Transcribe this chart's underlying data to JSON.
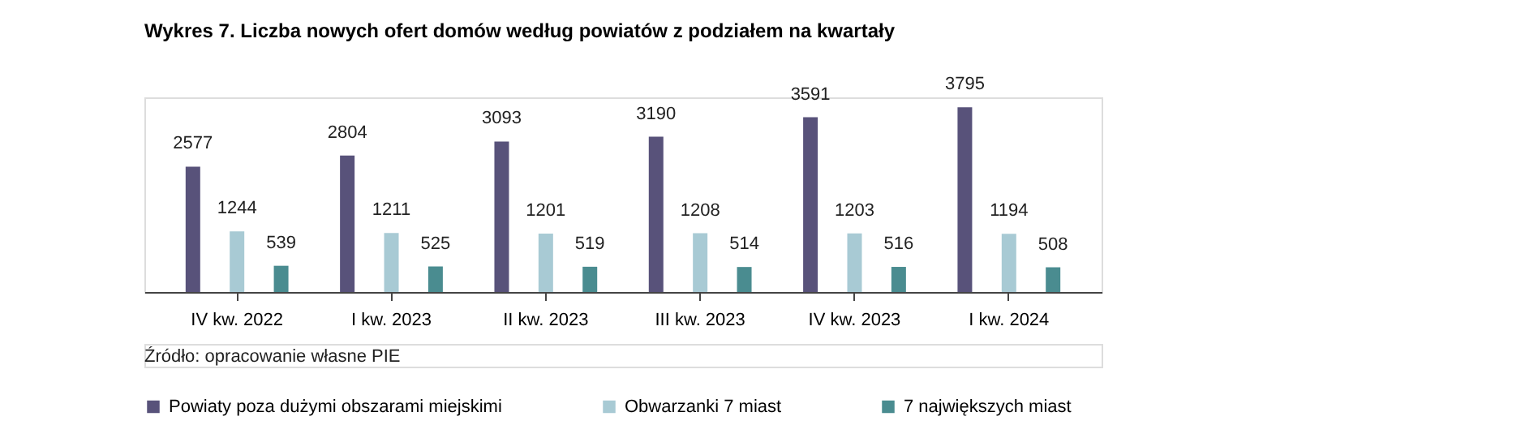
{
  "chart_data": {
    "type": "bar",
    "title": "Wykres 7.  Liczba nowych ofert domów według powiatów z podziałem na kwartały",
    "categories": [
      "IV kw. 2022",
      "I kw. 2023",
      "II kw. 2023",
      "III kw. 2023",
      "IV kw. 2023",
      "I kw. 2024"
    ],
    "series": [
      {
        "name": "Powiaty poza dużymi obszarami miejskimi",
        "color": "#58527a",
        "values": [
          2577,
          2804,
          3093,
          3190,
          3591,
          3795
        ]
      },
      {
        "name": "Obwarzanki 7 miast",
        "color": "#a8cad4",
        "values": [
          1244,
          1211,
          1201,
          1208,
          1203,
          1194
        ]
      },
      {
        "name": "7 największych miast",
        "color": "#4a8c90",
        "values": [
          539,
          525,
          519,
          514,
          516,
          508
        ]
      }
    ],
    "data_labels": true,
    "grid": false,
    "legend": "bottom",
    "tick_labels": "x",
    "annotations": [
      "Źródło: opracowanie własne PIE"
    ]
  }
}
